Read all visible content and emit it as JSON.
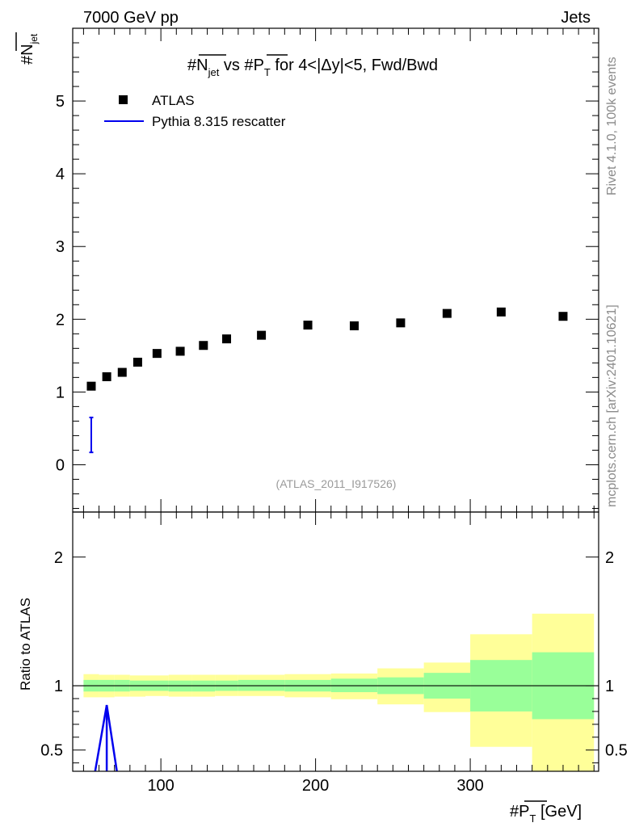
{
  "header": {
    "left": "7000 GeV pp",
    "right": "Jets"
  },
  "plot_title": {
    "prefix": "#",
    "n": "N",
    "n_sub": "jet",
    "middle": " vs #",
    "p": "P",
    "p_sub": "T",
    "suffix": " for 4<|Δy|<5, Fwd/Bwd"
  },
  "y_axis_title": {
    "main": "#N",
    "sub": "jet"
  },
  "x_axis_title": {
    "prefix": "#",
    "p": "P",
    "p_sub": "T",
    "suffix": " [GeV]"
  },
  "ratio_ylabel": "Ratio to ATLAS",
  "side_labels": {
    "rivet": "Rivet 4.1.0,  100k events",
    "mcplots": "mcplots.cern.ch [arXiv:2401.10621]"
  },
  "watermark": "(ATLAS_2011_I917526)",
  "legend": {
    "data_label": "ATLAS",
    "mc_label": "Pythia 8.315 rescatter"
  },
  "colors": {
    "data": "#000000",
    "mc": "#0000ee",
    "band_inner": "#99ff99",
    "band_outer": "#ffff99"
  },
  "chart_data": {
    "type": "scatter",
    "xlim": [
      43,
      383
    ],
    "main": {
      "ylim": [
        -0.65,
        6.0
      ],
      "yticks": [
        0,
        1,
        2,
        3,
        4,
        5
      ],
      "series": [
        {
          "name": "ATLAS",
          "x": [
            55,
            65,
            75,
            85,
            97.5,
            112.5,
            127.5,
            142.5,
            165,
            195,
            225,
            255,
            285,
            320,
            360
          ],
          "y": [
            1.08,
            1.21,
            1.27,
            1.41,
            1.53,
            1.56,
            1.64,
            1.73,
            1.78,
            1.92,
            1.91,
            1.95,
            2.08,
            2.1,
            2.04
          ]
        },
        {
          "name": "Pythia 8.315 rescatter",
          "x": [
            55
          ],
          "y": [
            0.41
          ],
          "yerr_low": [
            0.24
          ],
          "yerr_high": [
            0.24
          ]
        }
      ]
    },
    "ratio": {
      "ylim": [
        0.335,
        2.35
      ],
      "yticks": [
        0.5,
        1,
        2
      ],
      "bins": [
        50,
        60,
        70,
        80,
        90,
        105,
        120,
        135,
        150,
        180,
        210,
        240,
        270,
        300,
        340,
        380
      ],
      "inner_low": [
        0.955,
        0.955,
        0.955,
        0.96,
        0.96,
        0.955,
        0.955,
        0.96,
        0.96,
        0.955,
        0.95,
        0.935,
        0.9,
        0.8,
        0.74
      ],
      "inner_high": [
        1.045,
        1.045,
        1.045,
        1.04,
        1.04,
        1.04,
        1.04,
        1.04,
        1.045,
        1.045,
        1.055,
        1.065,
        1.1,
        1.2,
        1.26
      ],
      "outer_low": [
        0.91,
        0.91,
        0.915,
        0.915,
        0.92,
        0.915,
        0.915,
        0.92,
        0.92,
        0.91,
        0.895,
        0.855,
        0.795,
        0.525,
        0.335
      ],
      "outer_high": [
        1.09,
        1.085,
        1.085,
        1.08,
        1.08,
        1.085,
        1.085,
        1.085,
        1.085,
        1.09,
        1.095,
        1.135,
        1.18,
        1.4,
        1.56
      ],
      "mc_line": {
        "x": [
          57,
          65,
          72
        ],
        "y": [
          0.3,
          0.85,
          0.3
        ]
      }
    },
    "xticks": [
      100,
      200,
      300
    ]
  }
}
